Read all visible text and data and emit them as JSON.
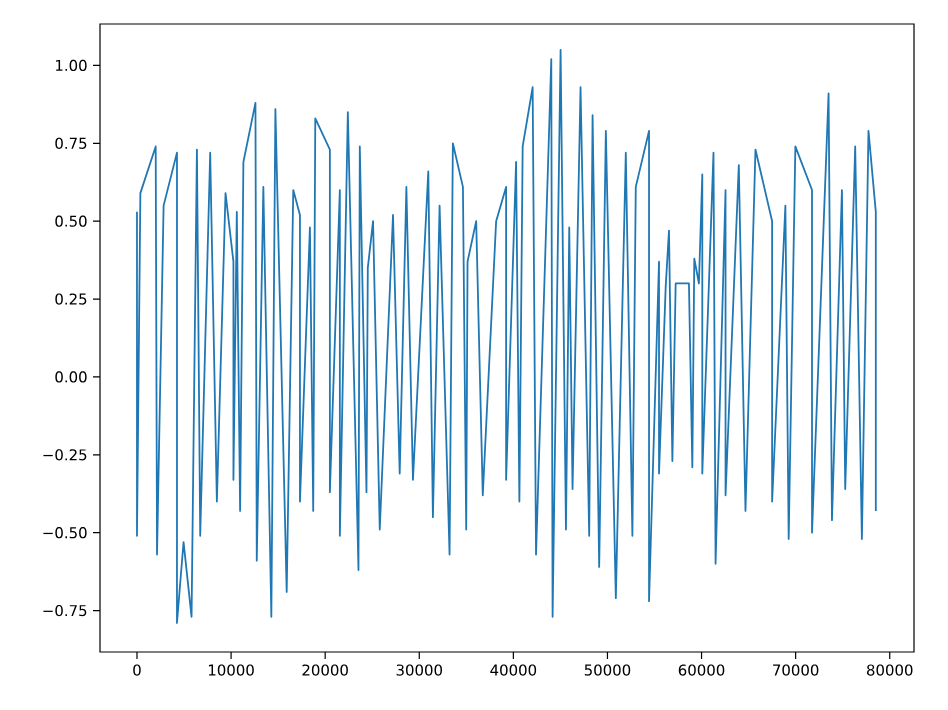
{
  "chart_data": {
    "type": "line",
    "color": "#1f77b4",
    "xlim": [
      -3930,
      82580
    ],
    "ylim": [
      -0.883,
      1.133
    ],
    "xticks": [
      0,
      10000,
      20000,
      30000,
      40000,
      50000,
      60000,
      70000,
      80000
    ],
    "yticks": [
      {
        "value": -0.75,
        "label": "−0.75"
      },
      {
        "value": -0.5,
        "label": "−0.50"
      },
      {
        "value": -0.25,
        "label": "−0.25"
      },
      {
        "value": 0,
        "label": "0.00"
      },
      {
        "value": 0.25,
        "label": "0.25"
      },
      {
        "value": 0.5,
        "label": "0.50"
      },
      {
        "value": 0.75,
        "label": "0.75"
      },
      {
        "value": 1,
        "label": "1.00"
      }
    ],
    "grid": false,
    "marker": "none",
    "line_style": "solid",
    "x": [
      0,
      0,
      360,
      1990,
      2130,
      2830,
      4250,
      4250,
      4950,
      5800,
      6370,
      6720,
      7780,
      8490,
      9410,
      10250,
      10250,
      10610,
      10960,
      11310,
      12590,
      12730,
      13430,
      14280,
      14710,
      15910,
      16610,
      17320,
      17320,
      18380,
      18730,
      18950,
      20500,
      20500,
      21560,
      21560,
      22410,
      23540,
      23680,
      24390,
      24530,
      25090,
      25800,
      27210,
      27920,
      28630,
      29330,
      30960,
      31450,
      32160,
      33220,
      33570,
      34640,
      34990,
      35130,
      36050,
      36750,
      38170,
      39230,
      39230,
      40290,
      40640,
      40990,
      42050,
      42410,
      44030,
      44170,
      45020,
      45590,
      45940,
      46290,
      47140,
      48060,
      48420,
      49120,
      49830,
      50890,
      51950,
      52650,
      53010,
      54420,
      54420,
      55480,
      55480,
      56190,
      56540,
      56900,
      57250,
      58660,
      59020,
      59230,
      59720,
      60080,
      60080,
      61270,
      61490,
      62550,
      62550,
      63960,
      64670,
      65730,
      67500,
      67500,
      68910,
      69260,
      69970,
      71740,
      71740,
      73500,
      73860,
      74920,
      75270,
      76330,
      77040,
      77740,
      78520,
      78520
    ],
    "values": [
      0.53,
      -0.51,
      0.59,
      0.74,
      -0.57,
      0.55,
      0.72,
      -0.79,
      -0.53,
      -0.77,
      0.73,
      -0.51,
      0.72,
      -0.4,
      0.59,
      0.37,
      -0.33,
      0.53,
      -0.43,
      0.69,
      0.88,
      -0.59,
      0.61,
      -0.77,
      0.86,
      -0.69,
      0.6,
      0.52,
      -0.4,
      0.48,
      -0.43,
      0.83,
      0.73,
      -0.37,
      0.6,
      -0.51,
      0.85,
      -0.62,
      0.74,
      -0.37,
      0.35,
      0.5,
      -0.49,
      0.52,
      -0.31,
      0.61,
      -0.33,
      0.66,
      -0.45,
      0.55,
      -0.57,
      0.75,
      0.61,
      -0.49,
      0.37,
      0.5,
      -0.38,
      0.5,
      0.61,
      -0.33,
      0.69,
      -0.4,
      0.74,
      0.93,
      -0.57,
      1.02,
      -0.77,
      1.05,
      -0.49,
      0.48,
      -0.36,
      0.93,
      -0.51,
      0.84,
      -0.61,
      0.79,
      -0.71,
      0.72,
      -0.51,
      0.61,
      0.79,
      -0.72,
      0.37,
      -0.31,
      0.29,
      0.47,
      -0.27,
      0.3,
      0.3,
      -0.29,
      0.38,
      0.3,
      0.65,
      -0.31,
      0.72,
      -0.6,
      0.6,
      -0.38,
      0.68,
      -0.43,
      0.73,
      0.5,
      -0.4,
      0.55,
      -0.52,
      0.74,
      0.6,
      -0.5,
      0.91,
      -0.46,
      0.6,
      -0.36,
      0.74,
      -0.52,
      0.79,
      0.53,
      -0.43
    ]
  }
}
